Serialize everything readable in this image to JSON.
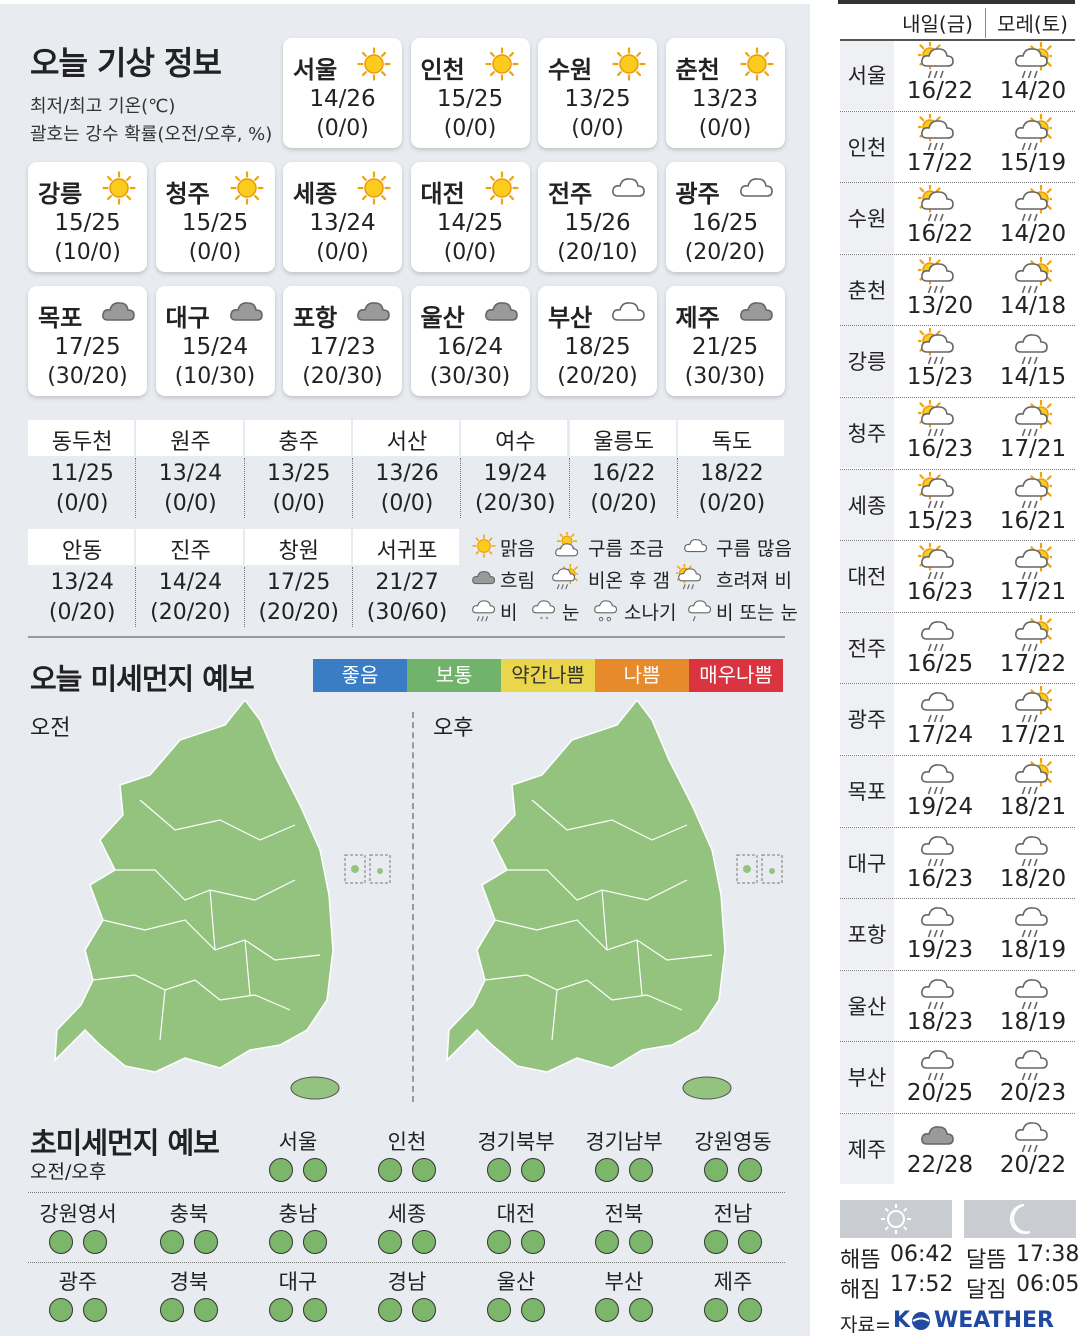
{
  "header": {
    "title": "오늘 기상 정보",
    "temp_note": "최저/최고 기온(℃)",
    "rain_note": "괄호는 강수 확률(오전/오후, %)"
  },
  "cities": [
    {
      "name": "서울",
      "temp": "14/26",
      "rain": "(0/0)"
    },
    {
      "name": "인천",
      "temp": "15/25",
      "rain": "(0/0)"
    },
    {
      "name": "수원",
      "temp": "13/25",
      "rain": "(0/0)"
    },
    {
      "name": "춘천",
      "temp": "13/23",
      "rain": "(0/0)"
    },
    {
      "name": "강릉",
      "temp": "15/25",
      "rain": "(10/0)"
    },
    {
      "name": "청주",
      "temp": "15/25",
      "rain": "(0/0)"
    },
    {
      "name": "세종",
      "temp": "13/24",
      "rain": "(0/0)"
    },
    {
      "name": "대전",
      "temp": "14/25",
      "rain": "(0/0)"
    },
    {
      "name": "전주",
      "temp": "15/26",
      "rain": "(20/10)"
    },
    {
      "name": "광주",
      "temp": "16/25",
      "rain": "(20/20)"
    },
    {
      "name": "목포",
      "temp": "17/25",
      "rain": "(30/20)"
    },
    {
      "name": "대구",
      "temp": "15/24",
      "rain": "(10/30)"
    },
    {
      "name": "포항",
      "temp": "17/23",
      "rain": "(20/30)"
    },
    {
      "name": "울산",
      "temp": "16/24",
      "rain": "(30/30)"
    },
    {
      "name": "부산",
      "temp": "18/25",
      "rain": "(20/20)"
    },
    {
      "name": "제주",
      "temp": "21/25",
      "rain": "(30/30)"
    }
  ],
  "more_cities": [
    {
      "name": "동두천",
      "temp": "11/25",
      "rain": "(0/0)"
    },
    {
      "name": "원주",
      "temp": "13/24",
      "rain": "(0/0)"
    },
    {
      "name": "충주",
      "temp": "13/25",
      "rain": "(0/0)"
    },
    {
      "name": "서산",
      "temp": "13/26",
      "rain": "(0/0)"
    },
    {
      "name": "여수",
      "temp": "19/24",
      "rain": "(20/30)"
    },
    {
      "name": "울릉도",
      "temp": "16/22",
      "rain": "(0/20)"
    },
    {
      "name": "독도",
      "temp": "18/22",
      "rain": "(0/20)"
    },
    {
      "name": "안동",
      "temp": "13/24",
      "rain": "(0/20)"
    },
    {
      "name": "진주",
      "temp": "14/24",
      "rain": "(20/20)"
    },
    {
      "name": "창원",
      "temp": "17/25",
      "rain": "(20/20)"
    },
    {
      "name": "서귀포",
      "temp": "21/27",
      "rain": "(30/60)"
    }
  ],
  "legend": [
    "맑음",
    "구름 조금",
    "구름 많음",
    "흐림",
    "비온 후 갬",
    "흐려져 비",
    "비",
    "눈",
    "소나기",
    "비 또는 눈"
  ],
  "fine_dust": {
    "title": "오늘 미세먼지 예보",
    "scale": [
      "좋음",
      "보통",
      "약간나쁨",
      "나쁨",
      "매우나쁨"
    ],
    "am": "오전",
    "pm": "오후"
  },
  "ultrafine_dust": {
    "title": "초미세먼지 예보",
    "subtitle": "오전/오후",
    "regions": [
      "서울",
      "인천",
      "경기북부",
      "경기남부",
      "강원영동",
      "강원영서",
      "충북",
      "충남",
      "세종",
      "대전",
      "전북",
      "전남",
      "광주",
      "경북",
      "대구",
      "경남",
      "울산",
      "부산",
      "제주"
    ]
  },
  "forecast": {
    "columns": [
      "내일(금)",
      "모레(토)"
    ],
    "rows": [
      {
        "name": "서울",
        "tomorrow": "16/22",
        "day_after": "14/20"
      },
      {
        "name": "인천",
        "tomorrow": "17/22",
        "day_after": "15/19"
      },
      {
        "name": "수원",
        "tomorrow": "16/22",
        "day_after": "14/20"
      },
      {
        "name": "춘천",
        "tomorrow": "13/20",
        "day_after": "14/18"
      },
      {
        "name": "강릉",
        "tomorrow": "15/23",
        "day_after": "14/15"
      },
      {
        "name": "청주",
        "tomorrow": "16/23",
        "day_after": "17/21"
      },
      {
        "name": "세종",
        "tomorrow": "15/23",
        "day_after": "16/21"
      },
      {
        "name": "대전",
        "tomorrow": "16/23",
        "day_after": "17/21"
      },
      {
        "name": "전주",
        "tomorrow": "16/25",
        "day_after": "17/22"
      },
      {
        "name": "광주",
        "tomorrow": "17/24",
        "day_after": "17/21"
      },
      {
        "name": "목포",
        "tomorrow": "19/24",
        "day_after": "18/21"
      },
      {
        "name": "대구",
        "tomorrow": "16/23",
        "day_after": "18/20"
      },
      {
        "name": "포항",
        "tomorrow": "19/23",
        "day_after": "18/19"
      },
      {
        "name": "울산",
        "tomorrow": "18/23",
        "day_after": "18/19"
      },
      {
        "name": "부산",
        "tomorrow": "20/25",
        "day_after": "20/23"
      },
      {
        "name": "제주",
        "tomorrow": "22/28",
        "day_after": "20/22"
      }
    ]
  },
  "sun_moon": {
    "sunrise_label": "해뜸",
    "sunrise": "06:42",
    "sunset_label": "해짐",
    "sunset": "17:52",
    "moonrise_label": "달뜸",
    "moonrise": "17:38",
    "moonset_label": "달짐",
    "moonset": "06:05"
  },
  "source": {
    "label": "자료=",
    "brand_k": "K",
    "brand": "WEATHER"
  }
}
